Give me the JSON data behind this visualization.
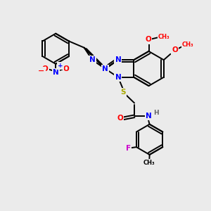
{
  "bg_color": "#ebebeb",
  "bond_color": "#000000",
  "N_color": "#0000ff",
  "O_color": "#ff0000",
  "S_color": "#aaaa00",
  "F_color": "#cc00cc",
  "H_color": "#666666",
  "line_width": 1.4,
  "dbo": 0.055,
  "xlim": [
    0,
    10
  ],
  "ylim": [
    0,
    10
  ]
}
